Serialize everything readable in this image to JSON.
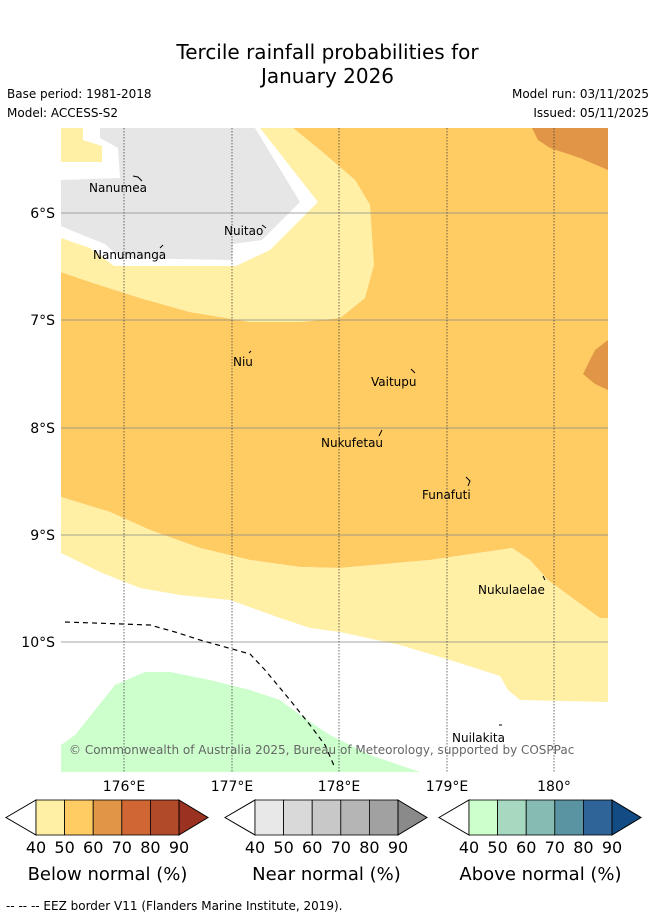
{
  "title_line1": "Tercile rainfall probabilities for",
  "title_line2": "January 2026",
  "meta": {
    "base_period": "Base period: 1981-2018",
    "model": "Model: ACCESS-S2",
    "model_run": "Model run: 03/11/2025",
    "issued": "Issued: 05/11/2025"
  },
  "map": {
    "lat_labels": [
      "6°S",
      "7°S",
      "8°S",
      "9°S",
      "10°S"
    ],
    "lon_labels": [
      "176°E",
      "177°E",
      "178°E",
      "179°E",
      "180°"
    ],
    "places": [
      "Nanumea",
      "Nuitao",
      "Nanumanga",
      "Niu",
      "Vaitupu",
      "Nukufetau",
      "Funafuti",
      "Nukulaelae",
      "Nuilakita"
    ],
    "copyright": "© Commonwealth of Australia 2025, Bureau of Meteorology, supported by COSPPac"
  },
  "colorbars": [
    {
      "title": "Below normal (%)",
      "ticks": [
        "40",
        "50",
        "60",
        "70",
        "80",
        "90"
      ],
      "colors": [
        "#fff0a6",
        "#ffcb63",
        "#e19647",
        "#cf6633",
        "#b04a28",
        "#9b3120"
      ]
    },
    {
      "title": "Near normal (%)",
      "ticks": [
        "40",
        "50",
        "60",
        "70",
        "80",
        "90"
      ],
      "colors": [
        "#e8e8e8",
        "#d9d9d9",
        "#c8c8c8",
        "#b5b5b5",
        "#a1a1a1",
        "#8a8a8a"
      ]
    },
    {
      "title": "Above normal (%)",
      "ticks": [
        "40",
        "50",
        "60",
        "70",
        "80",
        "90"
      ],
      "colors": [
        "#ccffcc",
        "#a6d9c0",
        "#85bbb3",
        "#5a94a3",
        "#2f6499",
        "#134b85"
      ]
    }
  ],
  "footnote": "--  --  -- EEZ border V11 (Flanders Marine Institute, 2019)."
}
